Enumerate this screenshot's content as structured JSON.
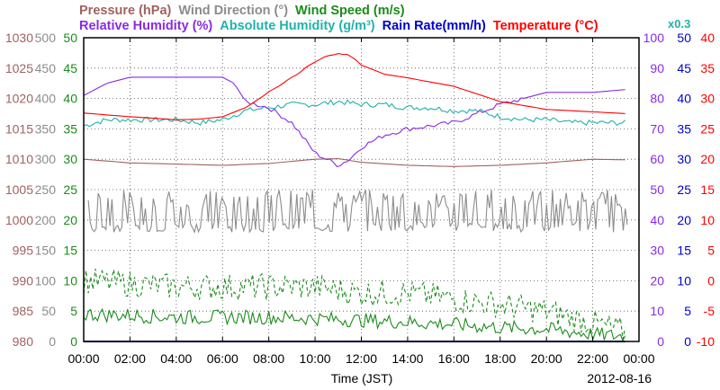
{
  "chart_data": {
    "type": "line",
    "x_label": "Time (JST)",
    "date": "2012-08-16",
    "x_ticks": [
      "00:00",
      "02:00",
      "04:00",
      "06:00",
      "08:00",
      "10:00",
      "12:00",
      "14:00",
      "16:00",
      "18:00",
      "20:00",
      "22:00",
      "00:00"
    ],
    "x_range_hours": [
      0,
      24
    ],
    "grid": true,
    "header": {
      "row1": [
        {
          "text": "Pressure (hPa)",
          "color": "#a0625f"
        },
        {
          "text": "Wind Direction (°)",
          "color": "#8c8c8c"
        },
        {
          "text": "Wind Speed (m/s)",
          "color": "#1a8c1a"
        }
      ],
      "row2": [
        {
          "text": "Relative Humidity (%)",
          "color": "#8a2be2"
        },
        {
          "text": "Absolute Humidity (g/m³)",
          "color": "#20b2aa"
        },
        {
          "text": "Rain Rate(mm/h)",
          "color": "#0000cc"
        },
        {
          "text": "Temperature (°C)",
          "color": "#ff0000"
        }
      ]
    },
    "scale_note": "x0.3",
    "axes": {
      "pressure": {
        "color": "#a0625f",
        "ticks": [
          "980",
          "985",
          "990",
          "995",
          "1000",
          "1005",
          "1010",
          "1015",
          "1020",
          "1025",
          "1030"
        ]
      },
      "wind_direction": {
        "color": "#8c8c8c",
        "ticks": [
          "0",
          "50",
          "100",
          "150",
          "200",
          "250",
          "300",
          "350",
          "400",
          "450",
          "500"
        ]
      },
      "wind_speed": {
        "color": "#1a8c1a",
        "ticks": [
          "0",
          "5",
          "10",
          "15",
          "20",
          "25",
          "30",
          "35",
          "40",
          "45",
          "50"
        ]
      },
      "humidity": {
        "color": "#8a2be2",
        "ticks": [
          "0",
          "10",
          "20",
          "30",
          "40",
          "50",
          "60",
          "70",
          "80",
          "90",
          "100"
        ]
      },
      "rain_rate": {
        "color": "#0000cc",
        "ticks": [
          "0",
          "5",
          "10",
          "15",
          "20",
          "25",
          "30",
          "35",
          "40",
          "45",
          "50"
        ]
      },
      "temperature": {
        "color": "#ff0000",
        "ticks": [
          "-10",
          "-5",
          "0",
          "5",
          "10",
          "15",
          "20",
          "25",
          "30",
          "35",
          "40"
        ]
      }
    },
    "series": [
      {
        "name": "Temperature (°C)",
        "color": "#ff0000",
        "axis": "temperature",
        "x": [
          0,
          2,
          4,
          5,
          6,
          7,
          8,
          9,
          10,
          10.5,
          11,
          11.5,
          12,
          13,
          14,
          16,
          18,
          20,
          22,
          23.5
        ],
        "y": [
          27.6,
          27.0,
          26.5,
          26.6,
          27.0,
          28.5,
          31.0,
          33.5,
          36.0,
          37.0,
          37.5,
          37.0,
          35.5,
          34.0,
          33.4,
          32.0,
          29.5,
          28.2,
          27.8,
          27.5
        ]
      },
      {
        "name": "Relative Humidity (%)",
        "color": "#8a2be2",
        "axis": "humidity",
        "x": [
          0,
          1,
          2,
          3,
          4,
          5,
          6,
          6.5,
          7,
          8,
          9,
          9.5,
          10,
          10.5,
          11,
          11.5,
          12,
          13,
          14,
          15,
          16,
          17,
          18,
          19,
          20,
          22,
          23.5
        ],
        "y": [
          81,
          85,
          87,
          87,
          87,
          87,
          87,
          85,
          79,
          77,
          72,
          67,
          62,
          60,
          58,
          60,
          64,
          68,
          70,
          71,
          72,
          75,
          78,
          80,
          82,
          82,
          83
        ]
      },
      {
        "name": "Absolute Humidity (g/m³)",
        "color": "#20b2aa",
        "axis": "humidity",
        "x": [
          0,
          1,
          2,
          3,
          4,
          5,
          6,
          7,
          8,
          9,
          10,
          11,
          12,
          13,
          14,
          15,
          16,
          17,
          18,
          19,
          20,
          21,
          22,
          23.5
        ],
        "y": [
          71,
          73,
          73,
          73,
          73,
          72,
          73,
          76,
          77,
          78,
          78,
          79,
          78,
          78,
          77,
          77,
          76,
          76,
          74,
          73,
          73,
          72,
          72,
          72
        ]
      },
      {
        "name": "Pressure (hPa)",
        "color": "#a0625f",
        "axis": "pressure",
        "x": [
          0,
          2,
          4,
          6,
          8,
          10,
          11,
          12,
          14,
          16,
          18,
          20,
          22,
          23.5
        ],
        "y": [
          1010.0,
          1009.4,
          1009.2,
          1009.0,
          1009.3,
          1010.0,
          1010.1,
          1009.5,
          1009.0,
          1008.8,
          1009.0,
          1009.4,
          1010.0,
          1009.9
        ]
      },
      {
        "name": "Rain Rate(mm/h)",
        "color": "#0000cc",
        "axis": "rain_rate",
        "x": [
          0,
          23.5
        ],
        "y": [
          0,
          0
        ]
      },
      {
        "name": "Wind Direction (°)",
        "color": "#8c8c8c",
        "axis": "wind_direction",
        "x_range": [
          0.2,
          23.5
        ],
        "values_between": [
          180,
          250
        ]
      },
      {
        "name": "Wind Speed (m/s)",
        "color": "#1a8c1a",
        "axis": "wind_speed",
        "x": [
          0,
          2,
          4,
          6,
          8,
          10,
          12,
          14,
          16,
          18,
          20,
          22,
          23.5
        ],
        "y": [
          4.5,
          4.3,
          4.0,
          4.0,
          4.0,
          3.8,
          3.5,
          3.2,
          2.8,
          2.3,
          2.0,
          1.2,
          0.8
        ]
      },
      {
        "name": "Wind Speed gust (m/s)",
        "color": "#1a8c1a",
        "axis": "wind_speed",
        "dashed": true,
        "x": [
          0,
          2,
          4,
          6,
          8,
          10,
          12,
          14,
          16,
          18,
          20,
          22,
          23.5
        ],
        "y": [
          10.0,
          9.5,
          9.0,
          9.0,
          9.0,
          9.0,
          8.0,
          8.0,
          7.0,
          6.0,
          5.0,
          3.0,
          1.5
        ]
      }
    ]
  }
}
